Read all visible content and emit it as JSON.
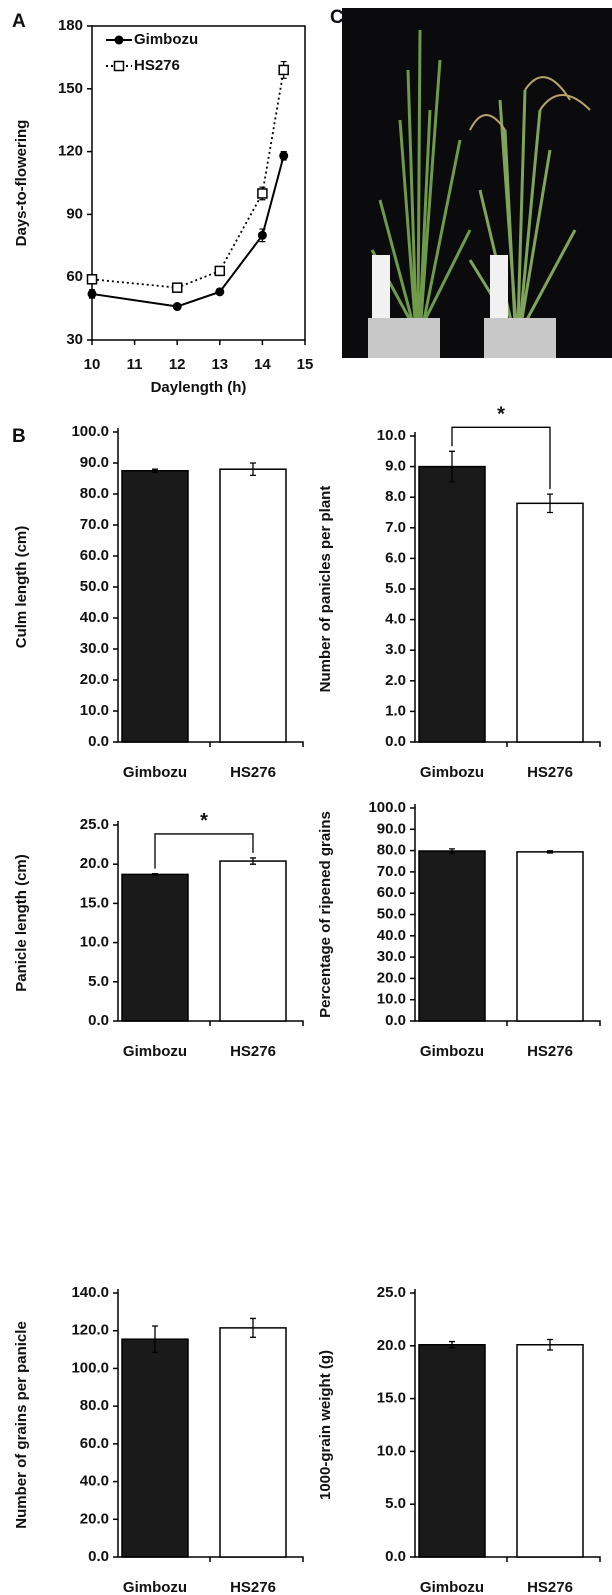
{
  "chart_data": [
    {
      "type": "line",
      "panel": "A",
      "xlabel": "Daylength (h)",
      "ylabel": "Days-to-flowering",
      "x": [
        10,
        12,
        13,
        14,
        14.5
      ],
      "series": [
        {
          "name": "Gimbozu",
          "color": "#000000",
          "marker": "circle",
          "dashed": false,
          "values": [
            52,
            46,
            53,
            80,
            118
          ],
          "errors": [
            2,
            1,
            1,
            3,
            2
          ]
        },
        {
          "name": "HS276",
          "color": "#000000",
          "marker": "square",
          "dashed": true,
          "values": [
            59,
            55,
            63,
            100,
            159
          ],
          "errors": [
            1,
            1,
            1,
            3,
            4
          ]
        }
      ],
      "xlim": [
        10,
        15
      ],
      "xticks": [
        10,
        11,
        12,
        13,
        14,
        15
      ],
      "ylim": [
        30,
        180
      ],
      "yticks": [
        30,
        60,
        90,
        120,
        150,
        180
      ],
      "legend": "top-left"
    },
    {
      "type": "bar",
      "panel": "B",
      "ylabel": "Culm length (cm)",
      "categories": [
        "Gimbozu",
        "HS276"
      ],
      "values": [
        87.5,
        88.0
      ],
      "errors": [
        0.5,
        2.0
      ],
      "colors": [
        "#1a1a1a",
        "#ffffff"
      ],
      "ylim": [
        0,
        100
      ],
      "yticks": [
        {
          "value": 0,
          "label": "0.0"
        },
        {
          "value": 10,
          "label": "10.0"
        },
        {
          "value": 20,
          "label": "20.0"
        },
        {
          "value": 30,
          "label": "30.0"
        },
        {
          "value": 40,
          "label": "40.0"
        },
        {
          "value": 50,
          "label": "50.0"
        },
        {
          "value": 60,
          "label": "60.0"
        },
        {
          "value": 70,
          "label": "70.0"
        },
        {
          "value": 80,
          "label": "80.0"
        },
        {
          "value": 90,
          "label": "90.0"
        },
        {
          "value": 100,
          "label": "100.0"
        }
      ]
    },
    {
      "type": "bar",
      "ylabel": "Number of panicles per plant",
      "categories": [
        "Gimbozu",
        "HS276"
      ],
      "values": [
        9.0,
        7.8
      ],
      "errors": [
        0.5,
        0.3
      ],
      "colors": [
        "#1a1a1a",
        "#ffffff"
      ],
      "annotation": "*",
      "ylim": [
        0,
        10
      ],
      "yticks": [
        {
          "value": 0,
          "label": "0.0"
        },
        {
          "value": 1,
          "label": "1.0"
        },
        {
          "value": 2,
          "label": "2.0"
        },
        {
          "value": 3,
          "label": "3.0"
        },
        {
          "value": 4,
          "label": "4.0"
        },
        {
          "value": 5,
          "label": "5.0"
        },
        {
          "value": 6,
          "label": "6.0"
        },
        {
          "value": 7,
          "label": "7.0"
        },
        {
          "value": 8,
          "label": "8.0"
        },
        {
          "value": 9,
          "label": "9.0"
        },
        {
          "value": 10,
          "label": "10.0"
        }
      ]
    },
    {
      "type": "bar",
      "ylabel": "Panicle length (cm)",
      "categories": [
        "Gimbozu",
        "HS276"
      ],
      "values": [
        18.7,
        20.4
      ],
      "errors": [
        0.1,
        0.4
      ],
      "colors": [
        "#1a1a1a",
        "#ffffff"
      ],
      "annotation": "*",
      "ylim": [
        0,
        25
      ],
      "yticks": [
        {
          "value": 0,
          "label": "0.0"
        },
        {
          "value": 5,
          "label": "5.0"
        },
        {
          "value": 10,
          "label": "10.0"
        },
        {
          "value": 15,
          "label": "15.0"
        },
        {
          "value": 20,
          "label": "20.0"
        },
        {
          "value": 25,
          "label": "25.0"
        }
      ]
    },
    {
      "type": "bar",
      "ylabel": "Percentage of ripened grains",
      "categories": [
        "Gimbozu",
        "HS276"
      ],
      "values": [
        79.8,
        79.4
      ],
      "errors": [
        1.0,
        0.5
      ],
      "colors": [
        "#1a1a1a",
        "#ffffff"
      ],
      "ylim": [
        0,
        100
      ],
      "yticks": [
        {
          "value": 0,
          "label": "0.0"
        },
        {
          "value": 10,
          "label": "10.0"
        },
        {
          "value": 20,
          "label": "20.0"
        },
        {
          "value": 30,
          "label": "30.0"
        },
        {
          "value": 40,
          "label": "40.0"
        },
        {
          "value": 50,
          "label": "50.0"
        },
        {
          "value": 60,
          "label": "60.0"
        },
        {
          "value": 70,
          "label": "70.0"
        },
        {
          "value": 80,
          "label": "80.0"
        },
        {
          "value": 90,
          "label": "90.0"
        },
        {
          "value": 100,
          "label": "100.0"
        }
      ]
    },
    {
      "type": "bar",
      "ylabel": "Number of grains per panicle",
      "categories": [
        "Gimbozu",
        "HS276"
      ],
      "values": [
        115.5,
        121.5
      ],
      "errors": [
        7,
        5
      ],
      "colors": [
        "#1a1a1a",
        "#ffffff"
      ],
      "ylim": [
        0,
        140
      ],
      "yticks": [
        {
          "value": 0,
          "label": "0.0"
        },
        {
          "value": 20,
          "label": "20.0"
        },
        {
          "value": 40,
          "label": "40.0"
        },
        {
          "value": 60,
          "label": "60.0"
        },
        {
          "value": 80,
          "label": "80.0"
        },
        {
          "value": 100,
          "label": "100.0"
        },
        {
          "value": 120,
          "label": "120.0"
        },
        {
          "value": 140,
          "label": "140.0"
        }
      ]
    },
    {
      "type": "bar",
      "ylabel": "1000-grain weight (g)",
      "categories": [
        "Gimbozu",
        "HS276"
      ],
      "values": [
        20.1,
        20.1
      ],
      "errors": [
        0.3,
        0.5
      ],
      "colors": [
        "#1a1a1a",
        "#ffffff"
      ],
      "ylim": [
        0,
        25
      ],
      "yticks": [
        {
          "value": 0,
          "label": "0.0"
        },
        {
          "value": 5,
          "label": "5.0"
        },
        {
          "value": 10,
          "label": "10.0"
        },
        {
          "value": 15,
          "label": "15.0"
        },
        {
          "value": 20,
          "label": "20.0"
        },
        {
          "value": 25,
          "label": "25.0"
        }
      ]
    }
  ],
  "photo": {
    "panel": "C"
  }
}
